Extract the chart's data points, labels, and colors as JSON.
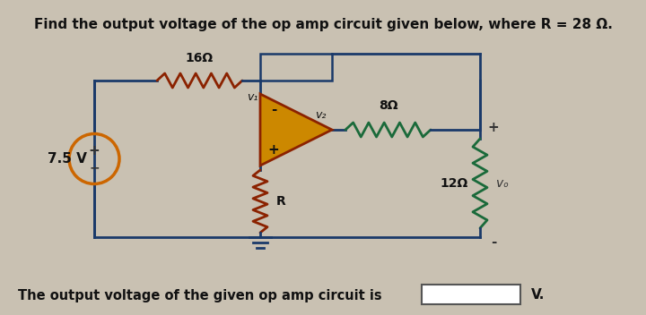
{
  "title": "Find the output voltage of the op amp circuit given below, where R = 28 Ω.",
  "bottom_text": "The output voltage of the given op amp circuit is",
  "bottom_unit": "V.",
  "bg_color": "#c9c1b2",
  "circuit_color": "#1a3a6a",
  "resistor_color_red": "#8B2200",
  "resistor_color_green": "#1a6a3a",
  "voltage_source_color": "#cc6600",
  "opamp_fill": "#cc8800",
  "opamp_outline": "#8B2200",
  "label_16": "16Ω",
  "label_8": "8Ω",
  "label_12": "12Ω",
  "label_R": "R",
  "label_v1": "v₁",
  "label_v2": "v₂",
  "label_vo": "vₒ",
  "label_75": "7.5 V",
  "label_plus": "+",
  "label_minus": "-"
}
